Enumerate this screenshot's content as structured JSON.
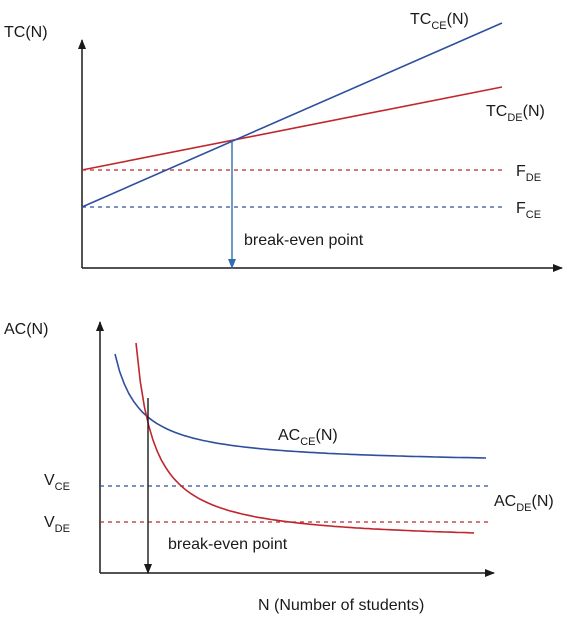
{
  "top_chart": {
    "y_axis_label": "TC(N)",
    "tc_ce_label": {
      "main": "TC",
      "sub": "CE",
      "suffix": "(N)"
    },
    "tc_de_label": {
      "main": "TC",
      "sub": "DE",
      "suffix": "(N)"
    },
    "f_de_label": {
      "main": "F",
      "sub": "DE"
    },
    "f_ce_label": {
      "main": "F",
      "sub": "CE"
    },
    "break_even_label": "break-even point"
  },
  "bottom_chart": {
    "y_axis_label": "AC(N)",
    "ac_ce_label": {
      "main": "AC",
      "sub": "CE",
      "suffix": "(N)"
    },
    "ac_de_label": {
      "main": "AC",
      "sub": "DE",
      "suffix": "(N)"
    },
    "v_ce_label": {
      "main": "V",
      "sub": "CE"
    },
    "v_de_label": {
      "main": "V",
      "sub": "DE"
    },
    "break_even_label": "break-even point",
    "x_axis_label": "N (Number of students)"
  },
  "colors": {
    "ce": "#2f4f9e",
    "de": "#c0262d",
    "axis": "#1a1a1a",
    "arrow_top": "#2f6fb0"
  }
}
